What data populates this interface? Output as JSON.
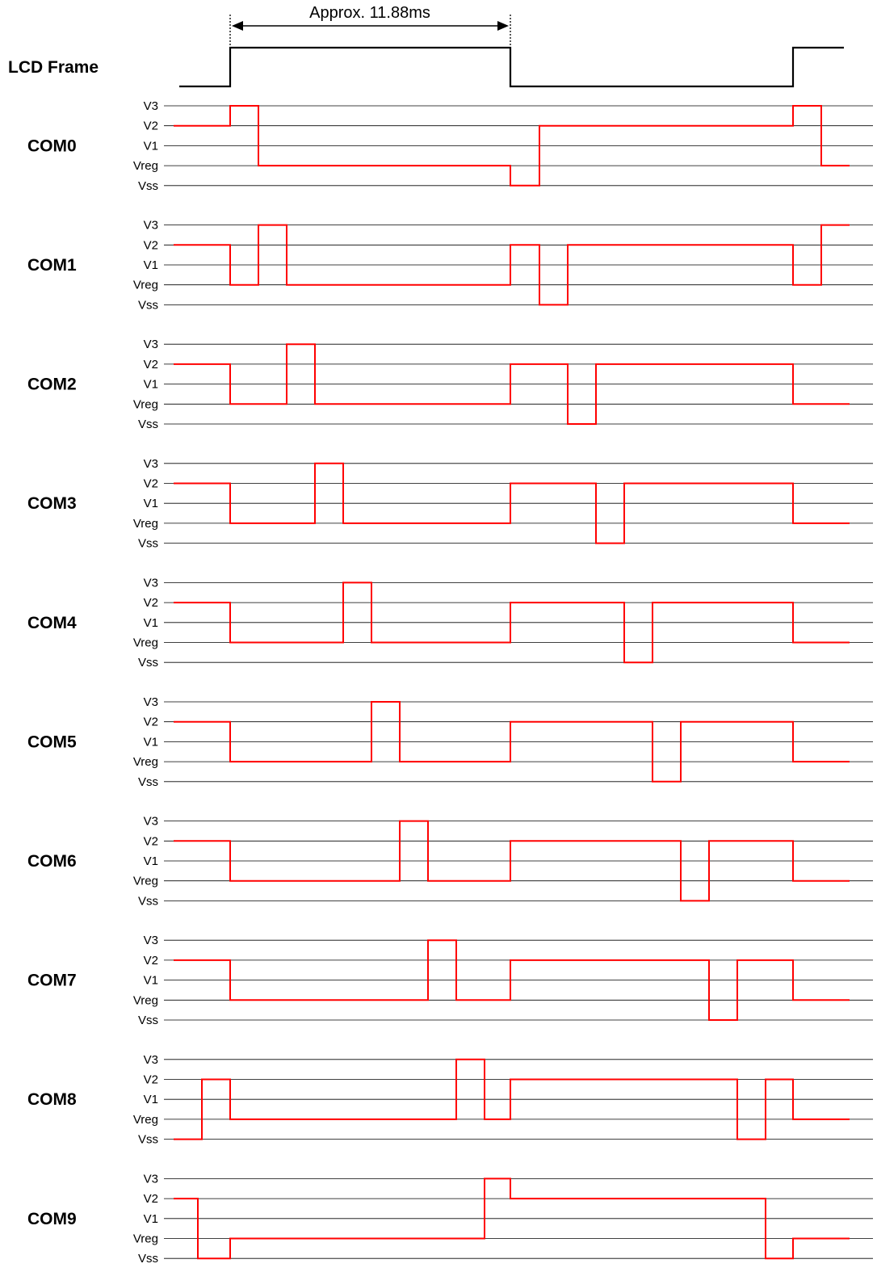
{
  "frame": {
    "label": "LCD Frame",
    "period_label": "Approx. 11.88ms",
    "color": "#000000",
    "levels": [
      0,
      1,
      0,
      1
    ],
    "edges": [
      285,
      632,
      982,
      1045
    ]
  },
  "levels": [
    "V3",
    "V2",
    "V1",
    "Vreg",
    "Vss"
  ],
  "wave_color": "#ff0000",
  "grid_color": "#000000",
  "coms": [
    {
      "name": "COM0",
      "levels": [
        1,
        0,
        3,
        4,
        1,
        0,
        3
      ],
      "edges": [
        215,
        285,
        320,
        632,
        668,
        982,
        1017,
        1052
      ]
    },
    {
      "name": "COM1",
      "levels": [
        1,
        3,
        0,
        3,
        1,
        4,
        1,
        3,
        0
      ],
      "edges": [
        215,
        285,
        320,
        355,
        632,
        668,
        703,
        982,
        1017,
        1052
      ]
    },
    {
      "name": "COM2",
      "levels": [
        1,
        3,
        0,
        3,
        1,
        4,
        1,
        3
      ],
      "edges": [
        215,
        285,
        355,
        390,
        632,
        703,
        738,
        982,
        1052
      ]
    },
    {
      "name": "COM3",
      "levels": [
        1,
        3,
        0,
        3,
        1,
        4,
        1,
        3
      ],
      "edges": [
        215,
        285,
        390,
        425,
        632,
        738,
        773,
        982,
        1052
      ]
    },
    {
      "name": "COM4",
      "levels": [
        1,
        3,
        0,
        3,
        1,
        4,
        1,
        3
      ],
      "edges": [
        215,
        285,
        425,
        460,
        632,
        773,
        808,
        982,
        1052
      ]
    },
    {
      "name": "COM5",
      "levels": [
        1,
        3,
        0,
        3,
        1,
        4,
        1,
        3
      ],
      "edges": [
        215,
        285,
        460,
        495,
        632,
        808,
        843,
        982,
        1052
      ]
    },
    {
      "name": "COM6",
      "levels": [
        1,
        3,
        0,
        3,
        1,
        4,
        1,
        3
      ],
      "edges": [
        215,
        285,
        495,
        530,
        632,
        843,
        878,
        982,
        1052
      ]
    },
    {
      "name": "COM7",
      "levels": [
        1,
        3,
        0,
        3,
        1,
        4,
        1,
        3
      ],
      "edges": [
        215,
        285,
        530,
        565,
        632,
        878,
        913,
        982,
        1052
      ]
    },
    {
      "name": "COM8",
      "levels": [
        4,
        1,
        3,
        0,
        3,
        1,
        4,
        1,
        3
      ],
      "edges": [
        215,
        250,
        285,
        565,
        600,
        632,
        913,
        948,
        982,
        1052
      ]
    },
    {
      "name": "COM9",
      "levels": [
        1,
        4,
        3,
        0,
        1,
        4,
        3
      ],
      "edges": [
        215,
        245,
        285,
        600,
        632,
        948,
        982,
        1052
      ]
    }
  ]
}
